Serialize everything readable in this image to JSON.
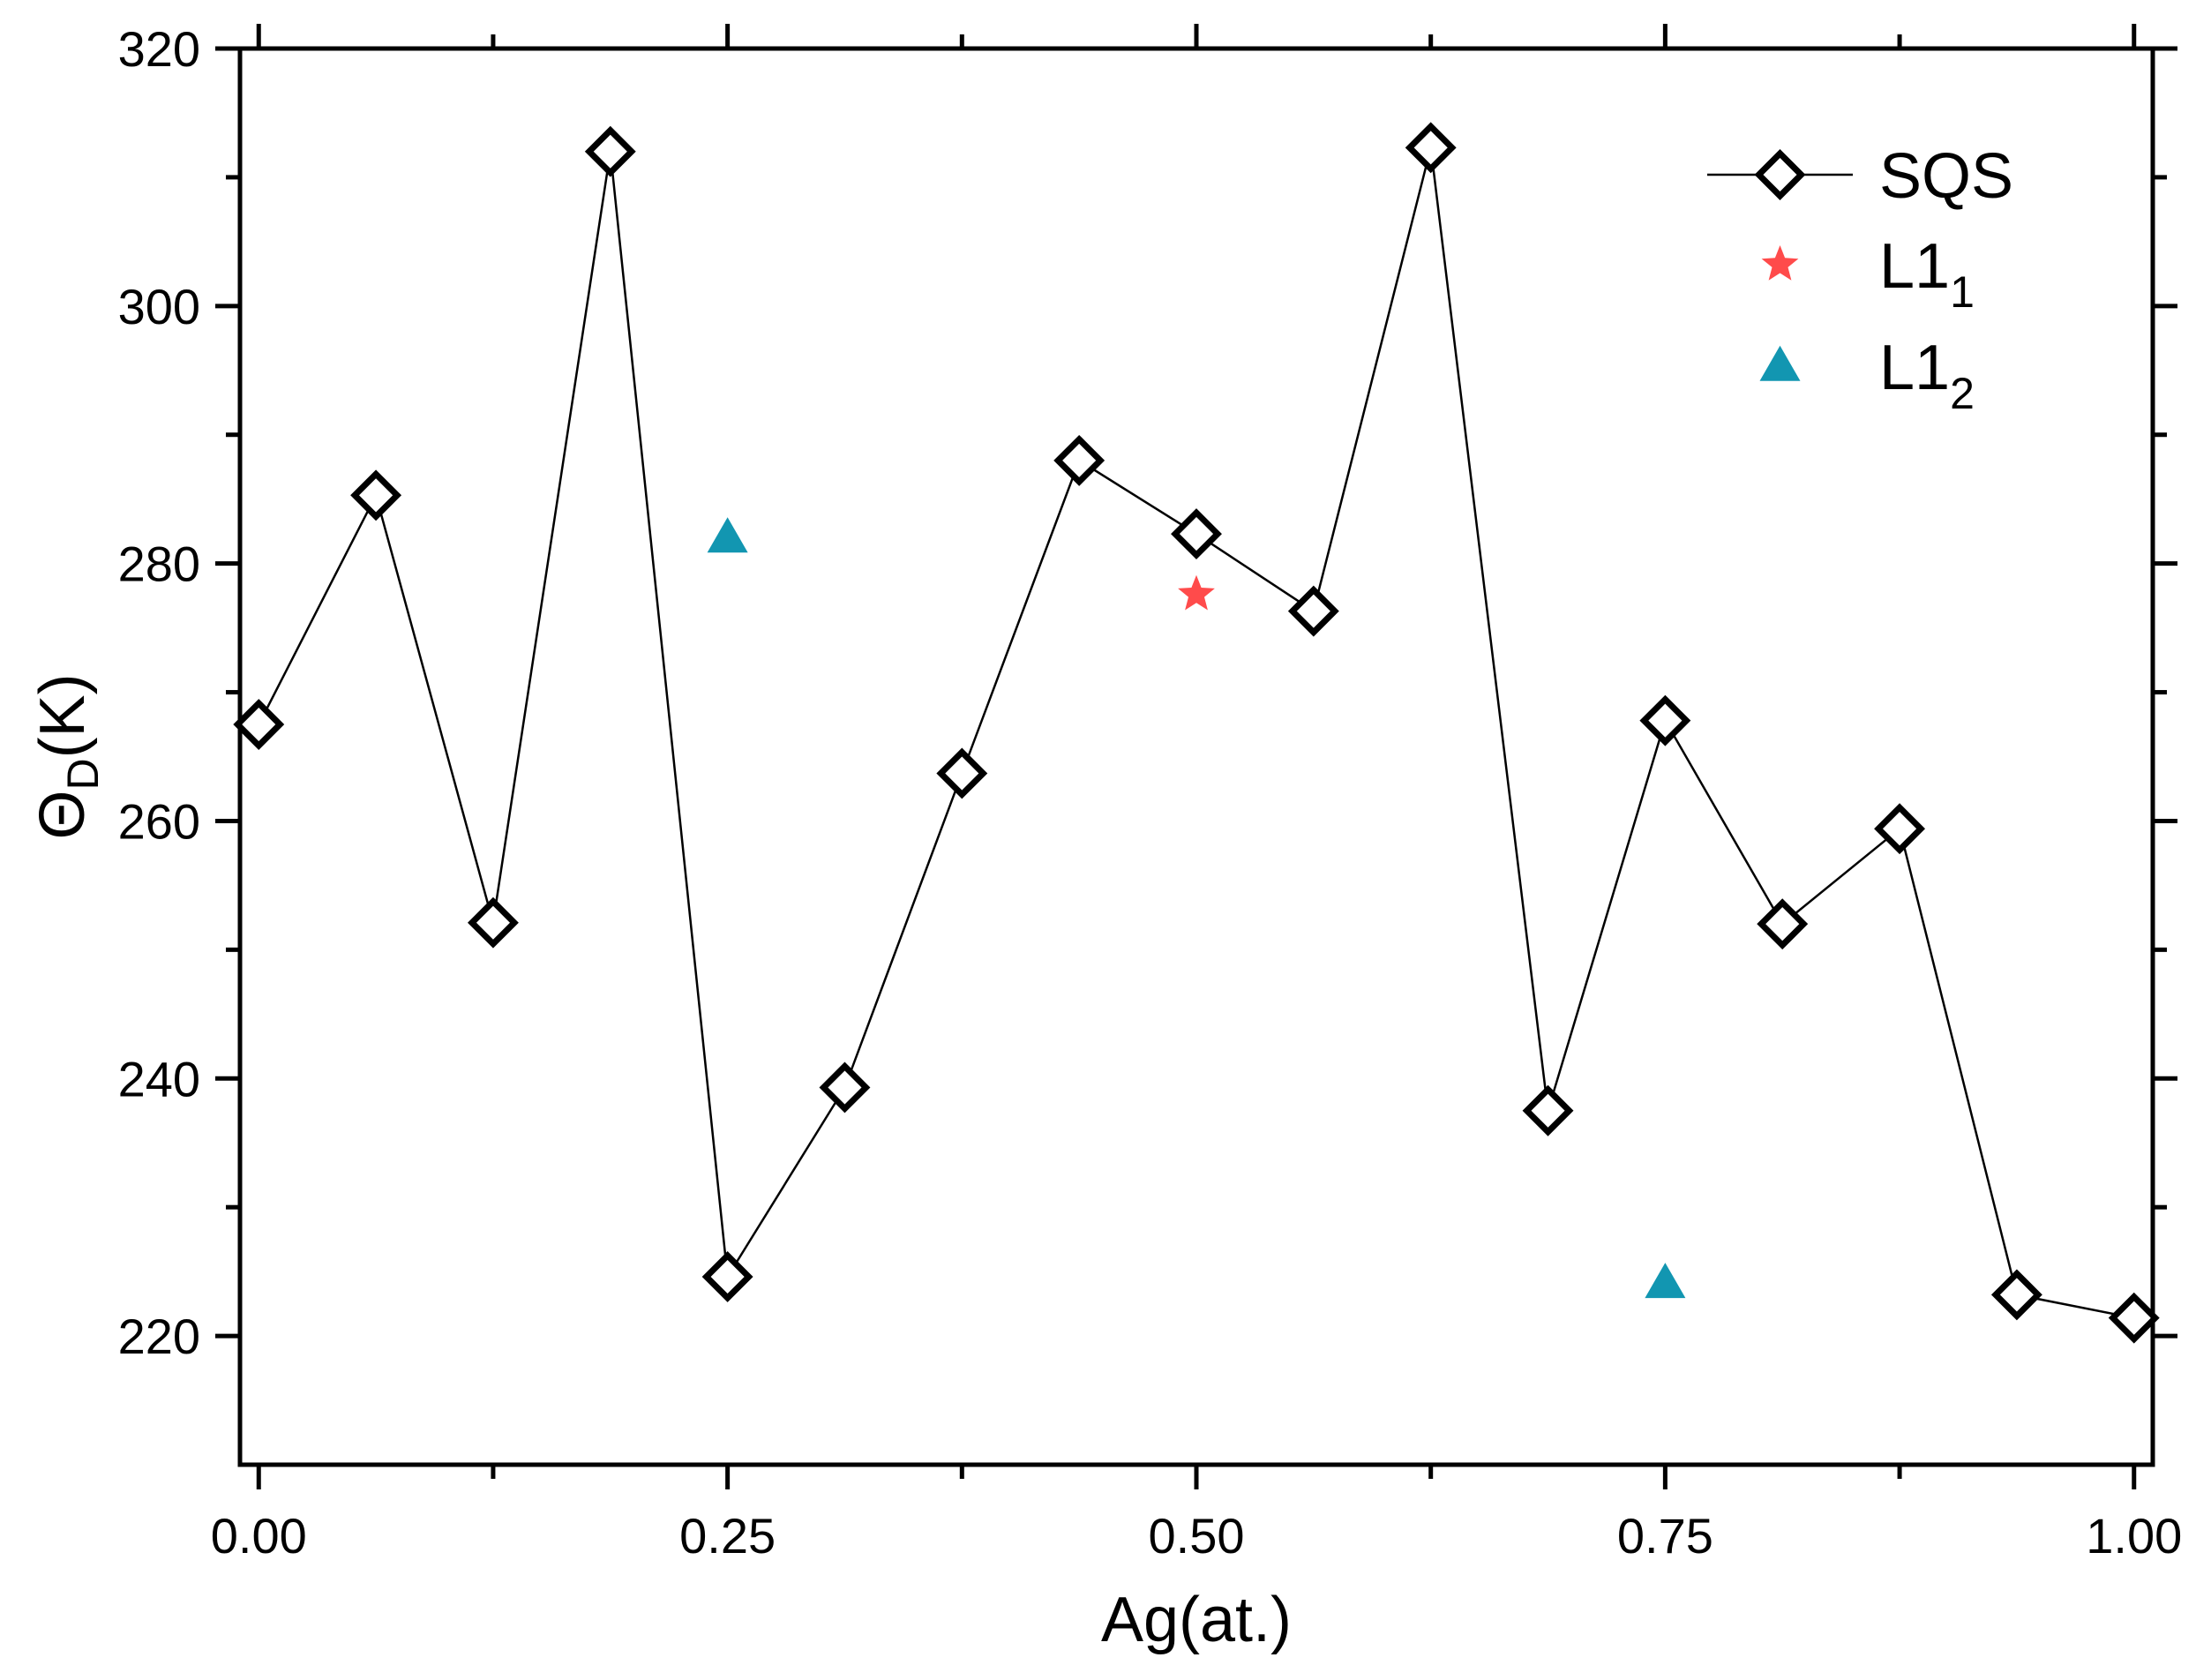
{
  "chart_data": {
    "type": "line",
    "title": "",
    "xlabel": "Ag(at.)",
    "ylabel": {
      "symbol": "Θ",
      "subscript": "D",
      "suffix": "(K)"
    },
    "xlim": [
      -0.01,
      1.01
    ],
    "ylim": [
      210,
      320
    ],
    "xticks": [
      "0.00",
      "0.25",
      "0.50",
      "0.75",
      "1.00"
    ],
    "xtick_values": [
      0,
      0.25,
      0.5,
      0.75,
      1.0
    ],
    "yticks": [
      "220",
      "240",
      "260",
      "280",
      "300",
      "320"
    ],
    "ytick_values": [
      220,
      240,
      260,
      280,
      300,
      320
    ],
    "grid": false,
    "legend_position": "top-right",
    "series": [
      {
        "name": "SQS",
        "legend_main": "SQS",
        "legend_sub": "",
        "marker": "diamond-open",
        "color": "#000000",
        "line": true,
        "x": [
          0,
          0.0625,
          0.125,
          0.1875,
          0.25,
          0.3125,
          0.375,
          0.4375,
          0.5,
          0.5625,
          0.625,
          0.6875,
          0.75,
          0.8125,
          0.875,
          0.9375,
          1.0
        ],
        "values": [
          267.5,
          285.3,
          252.1,
          312.0,
          224.6,
          239.3,
          263.7,
          288.0,
          282.3,
          276.3,
          312.3,
          237.5,
          267.8,
          252.0,
          259.4,
          223.2,
          221.4
        ]
      },
      {
        "name": "L11",
        "legend_main": "L1",
        "legend_sub": "1",
        "marker": "star",
        "color": "#ff4b4b",
        "line": false,
        "x": [
          0.5
        ],
        "values": [
          277.6
        ]
      },
      {
        "name": "L12",
        "legend_main": "L1",
        "legend_sub": "2",
        "marker": "triangle",
        "color": "#1296b1",
        "line": false,
        "x": [
          0.25,
          0.75
        ],
        "values": [
          282.0,
          224.1
        ]
      }
    ]
  }
}
